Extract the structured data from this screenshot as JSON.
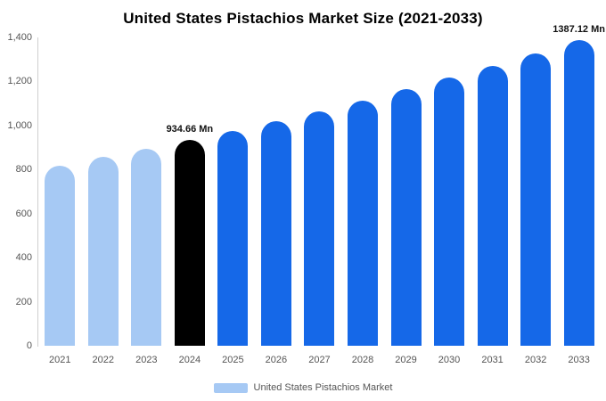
{
  "chart_data": {
    "type": "bar",
    "title": "United States Pistachios Market Size (2021-2033)",
    "categories": [
      "2021",
      "2022",
      "2023",
      "2024",
      "2025",
      "2026",
      "2027",
      "2028",
      "2029",
      "2030",
      "2031",
      "2032",
      "2033"
    ],
    "values": [
      819.4,
      856.2,
      894.6,
      934.66,
      976.6,
      1020.4,
      1066.1,
      1113.9,
      1163.9,
      1216.1,
      1270.6,
      1327.6,
      1387.12
    ],
    "unit": "Mn",
    "xlabel": "",
    "ylabel": "",
    "ylim": [
      0,
      1400
    ],
    "grid": false,
    "legend_position": "bottom",
    "legend": "United States Pistachios Market",
    "yticks": [
      {
        "value": 0,
        "label": "0"
      },
      {
        "value": 200,
        "label": "200"
      },
      {
        "value": 400,
        "label": "400"
      },
      {
        "value": 600,
        "label": "600"
      },
      {
        "value": 800,
        "label": "800"
      },
      {
        "value": 1000,
        "label": "1,000"
      },
      {
        "value": 1200,
        "label": "1,200"
      },
      {
        "value": 1400,
        "label": "1,400"
      }
    ],
    "colors": [
      "#A6C9F4",
      "#A6C9F4",
      "#A6C9F4",
      "#000000",
      "#1568E8",
      "#1568E8",
      "#1568E8",
      "#1568E8",
      "#1568E8",
      "#1568E8",
      "#1568E8",
      "#1568E8",
      "#1568E8"
    ],
    "legend_swatch_color": "#A6C9F4",
    "annotations": [
      {
        "index": 3,
        "text": "934.66 Mn"
      },
      {
        "index": 12,
        "text": "1387.12 Mn"
      }
    ]
  }
}
